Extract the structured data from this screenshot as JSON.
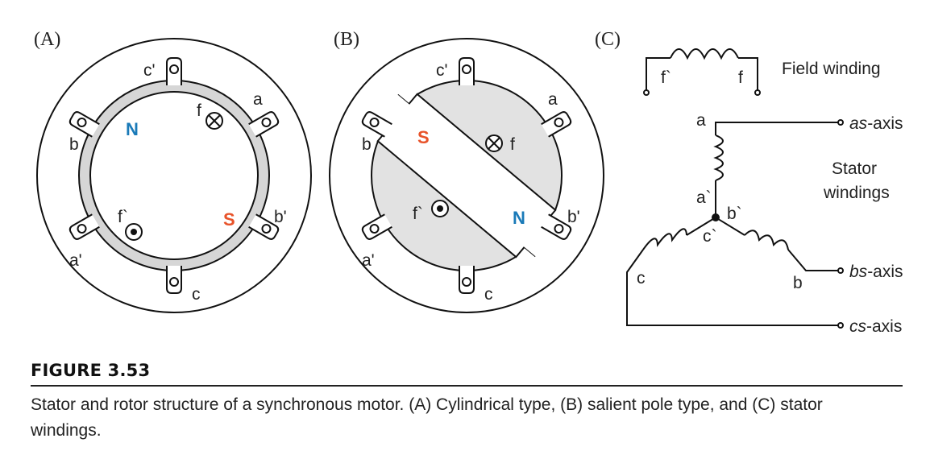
{
  "figure": {
    "panels": {
      "a": "(A)",
      "b": "(B)",
      "c": "(C)"
    },
    "stator_labels": {
      "a": "a",
      "b": "b",
      "c": "c",
      "a_prime": "a'",
      "b_prime": "b'",
      "c_prime": "c'"
    },
    "rotor_labels": {
      "f": "f",
      "f_prime": "f`"
    },
    "poles": {
      "north": "N",
      "south": "S"
    },
    "pole_colors": {
      "north": "#1a7ab8",
      "south": "#e8532a"
    },
    "winding": {
      "field_label": "Field winding",
      "field_f": "f",
      "field_f_prime": "f`",
      "a": "a",
      "a_prime": "a`",
      "b": "b",
      "b_prime": "b`",
      "c": "c",
      "c_prime": "c`",
      "stator_label_line1": "Stator",
      "stator_label_line2": "windings",
      "as_axis_italic": "as",
      "bs_axis_italic": "bs",
      "cs_axis_italic": "cs",
      "axis_suffix": "-axis"
    }
  },
  "caption": {
    "title": "FIGURE 3.53",
    "text": "Stator and rotor structure of a synchronous motor. (A) Cylindrical type, (B) salient pole type, and (C) stator windings."
  }
}
